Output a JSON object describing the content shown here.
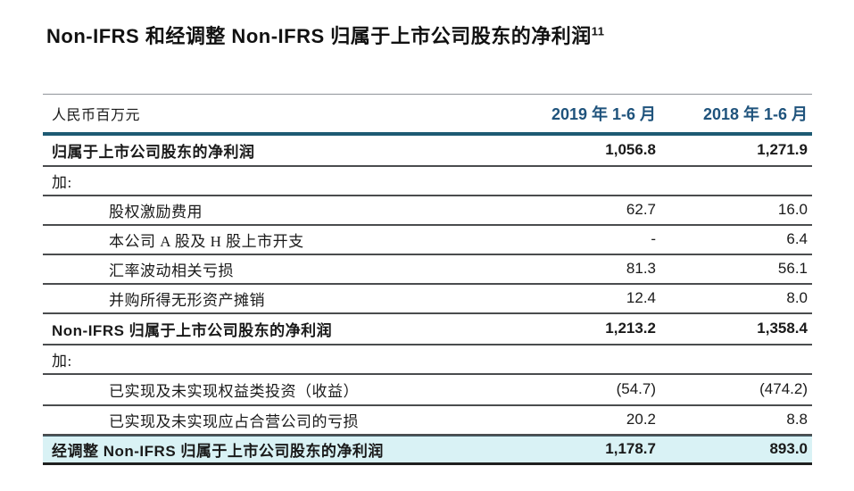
{
  "title": {
    "text": "Non-IFRS 和经调整 Non-IFRS 归属于上市公司股东的净利润",
    "superscript": "11"
  },
  "table": {
    "unit_label": "人民币百万元",
    "columns": [
      "2019 年 1-6 月",
      "2018 年 1-6 月"
    ],
    "rows": [
      {
        "label": "归属于上市公司股东的净利润",
        "v2019": "1,056.8",
        "v2018": "1,271.9"
      },
      {
        "label": "加:",
        "v2019": "",
        "v2018": ""
      },
      {
        "label": "股权激励费用",
        "v2019": "62.7",
        "v2018": "16.0"
      },
      {
        "label": "本公司 A 股及 H 股上市开支",
        "v2019": "-",
        "v2018": "6.4"
      },
      {
        "label": "汇率波动相关亏损",
        "v2019": "81.3",
        "v2018": "56.1"
      },
      {
        "label": "并购所得无形资产摊销",
        "v2019": "12.4",
        "v2018": "8.0"
      },
      {
        "label": "Non-IFRS 归属于上市公司股东的净利润",
        "v2019": "1,213.2",
        "v2018": "1,358.4"
      },
      {
        "label": "加:",
        "v2019": "",
        "v2018": ""
      },
      {
        "label": "已实现及未实现权益类投资（收益）",
        "v2019": "(54.7)",
        "v2018": "(474.2)"
      },
      {
        "label": "已实现及未实现应占合营公司的亏损",
        "v2019": "20.2",
        "v2018": "8.8"
      },
      {
        "label": "经调整 Non-IFRS 归属于上市公司股东的净利润",
        "v2019": "1,178.7",
        "v2018": "893.0"
      }
    ],
    "colors": {
      "header_text": "#1f537c",
      "header_rule": "#1d5a73",
      "highlight_bg": "#d9f2f5",
      "row_rule": "#4a4c4e"
    }
  }
}
